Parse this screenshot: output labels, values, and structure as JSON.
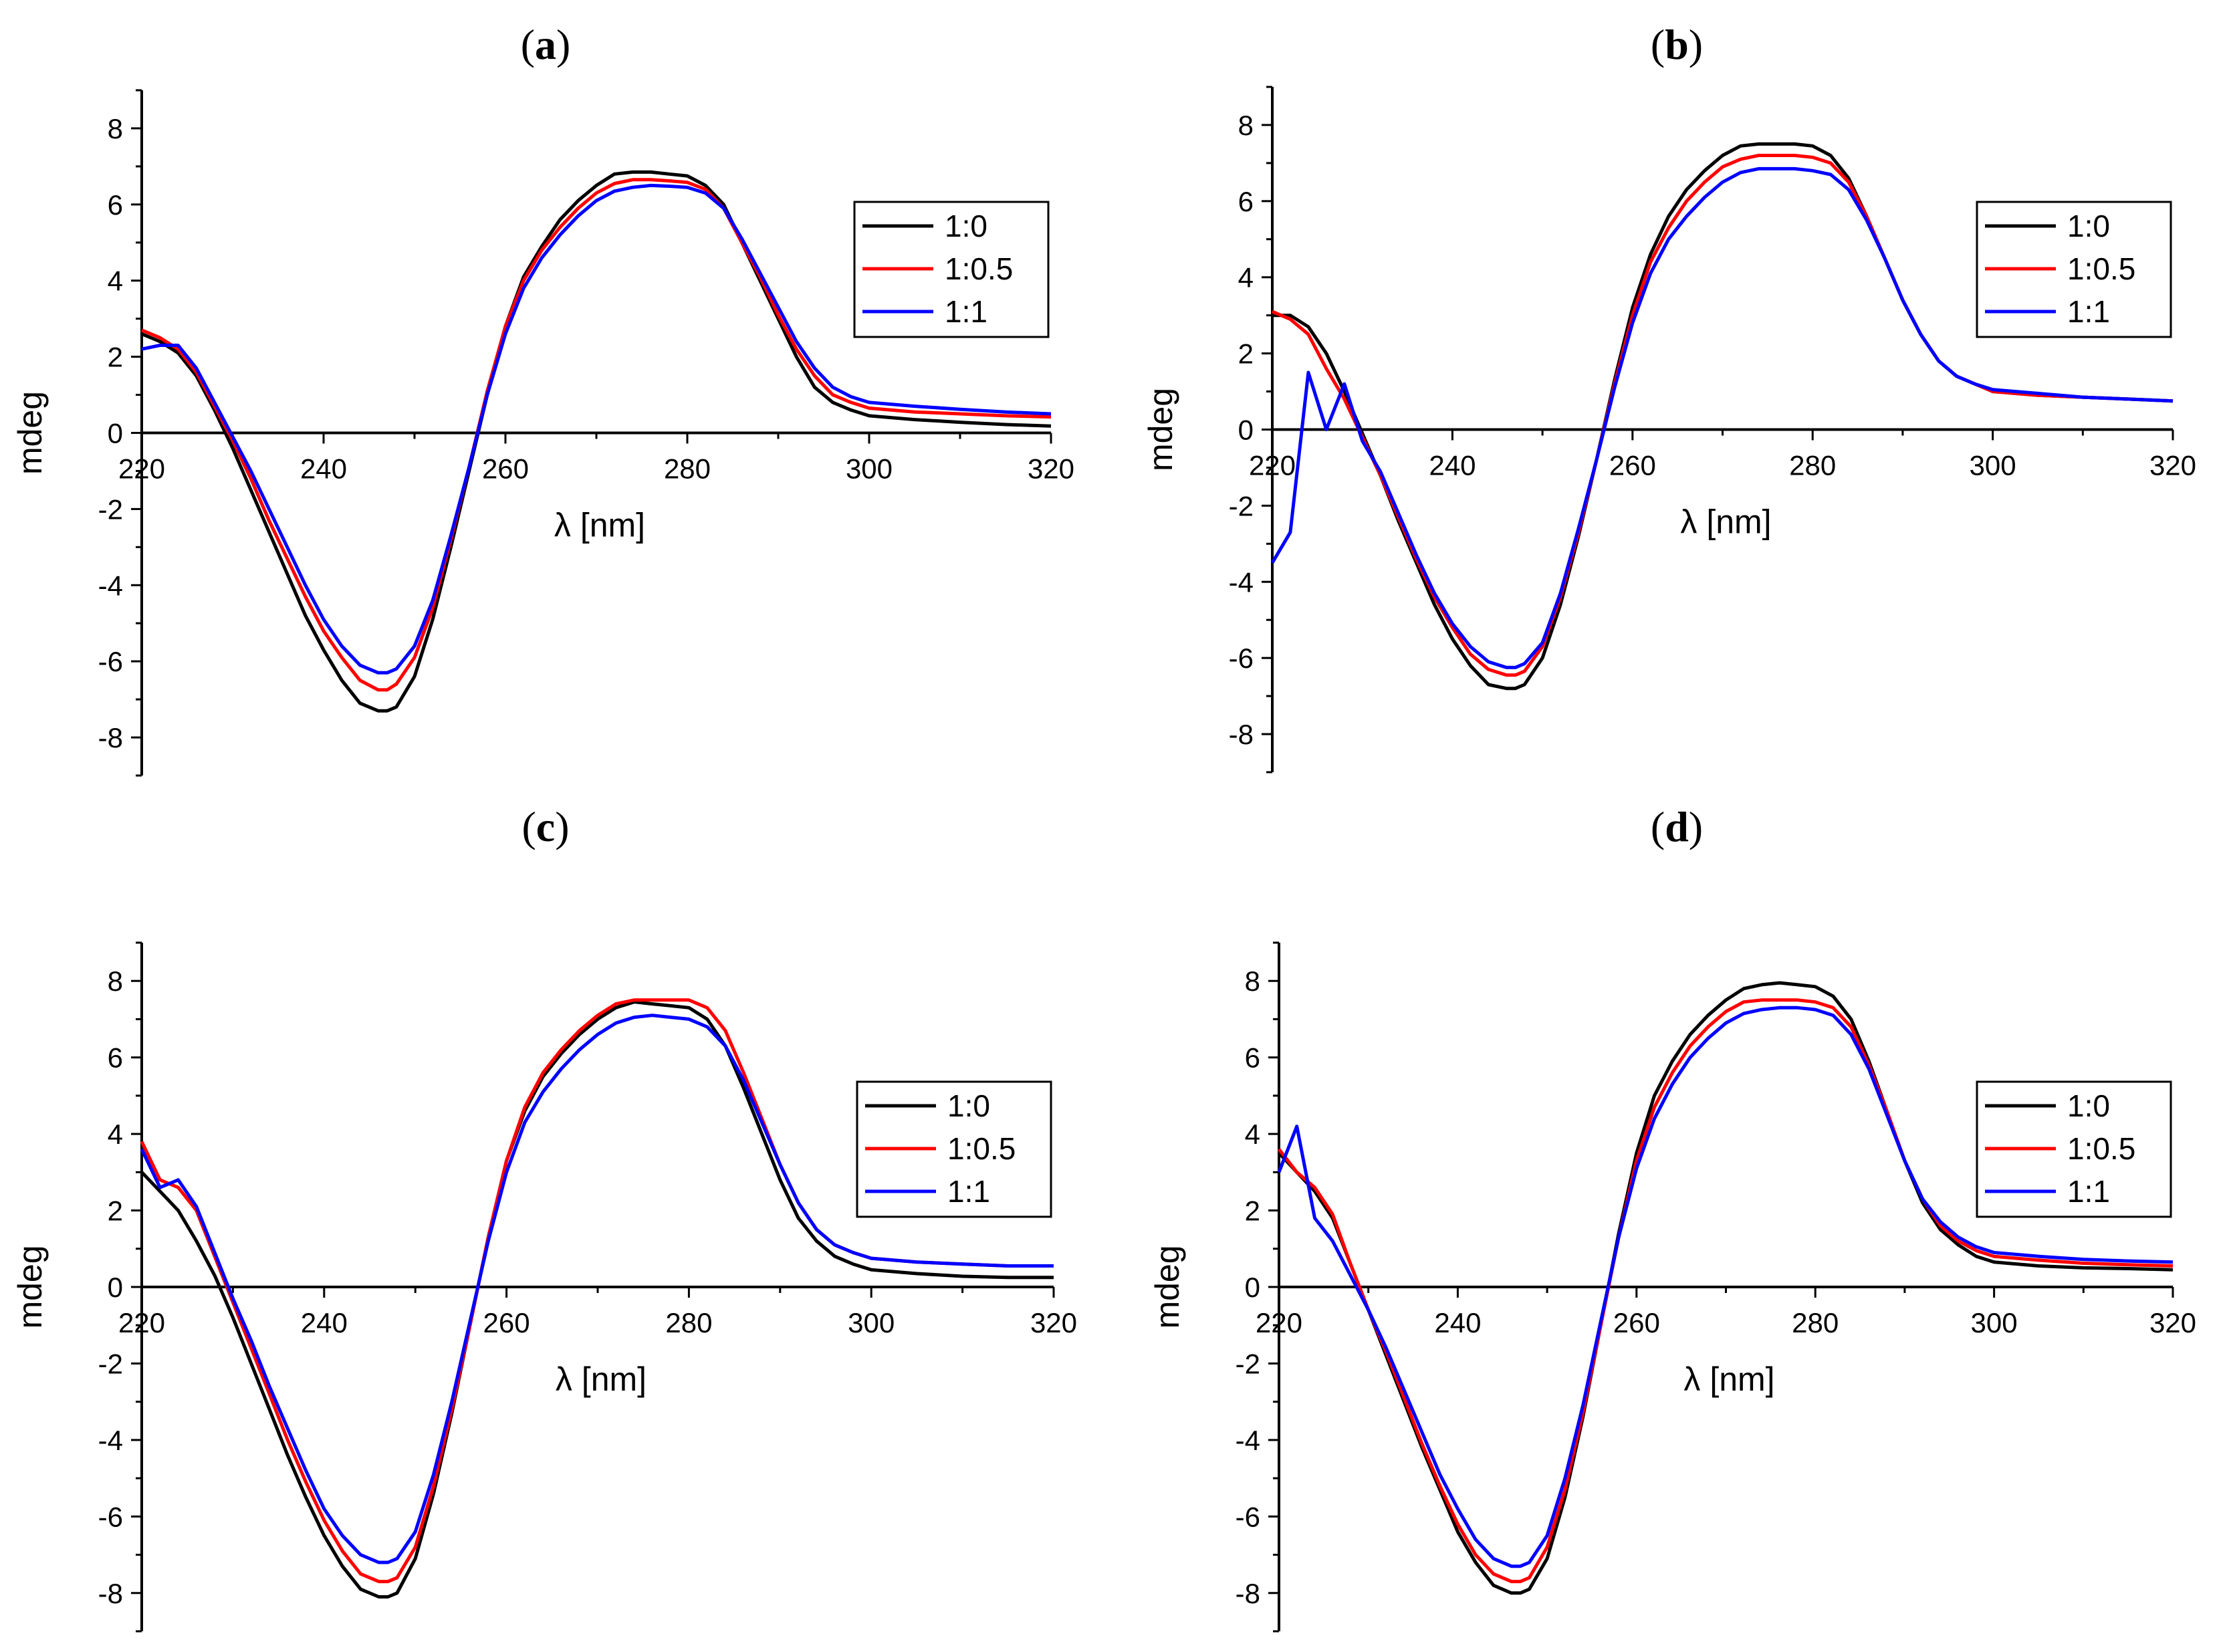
{
  "figure": {
    "panel_count": 4
  },
  "colors": {
    "series_1_0": "#000000",
    "series_1_0_5": "#ff0000",
    "series_1_1": "#0000ff"
  },
  "chart_data": [
    {
      "panel": "a",
      "type": "line",
      "xlabel": "λ [nm]",
      "ylabel": "mdeg",
      "xlim": [
        220,
        320
      ],
      "ylim": [
        -9,
        9
      ],
      "xticks": [
        220,
        240,
        260,
        280,
        300,
        320
      ],
      "yticks": [
        -8,
        -6,
        -4,
        -2,
        0,
        2,
        4,
        6,
        8
      ],
      "legend": "top-right",
      "x": [
        220,
        222,
        224,
        226,
        228,
        230,
        232,
        234,
        236,
        238,
        240,
        242,
        244,
        246,
        247,
        248,
        250,
        252,
        254,
        256,
        258,
        260,
        262,
        264,
        266,
        268,
        270,
        272,
        274,
        276,
        278,
        280,
        282,
        284,
        286,
        288,
        290,
        292,
        294,
        296,
        298,
        300,
        305,
        310,
        315,
        320
      ],
      "series": [
        {
          "name": "1:0",
          "color": "#000000",
          "values": [
            2.6,
            2.4,
            2.1,
            1.5,
            0.6,
            -0.4,
            -1.5,
            -2.6,
            -3.7,
            -4.8,
            -5.7,
            -6.5,
            -7.1,
            -7.3,
            -7.3,
            -7.2,
            -6.4,
            -4.9,
            -3.0,
            -1.0,
            1.0,
            2.8,
            4.1,
            4.9,
            5.6,
            6.1,
            6.5,
            6.8,
            6.85,
            6.85,
            6.8,
            6.75,
            6.5,
            6.0,
            5.0,
            4.0,
            3.0,
            2.0,
            1.2,
            0.8,
            0.6,
            0.45,
            0.35,
            0.28,
            0.22,
            0.18
          ]
        },
        {
          "name": "1:0.5",
          "color": "#ff0000",
          "values": [
            2.7,
            2.5,
            2.2,
            1.6,
            0.7,
            -0.2,
            -1.2,
            -2.3,
            -3.3,
            -4.3,
            -5.2,
            -5.9,
            -6.5,
            -6.75,
            -6.75,
            -6.6,
            -5.9,
            -4.6,
            -2.8,
            -0.9,
            1.1,
            2.8,
            4.0,
            4.8,
            5.4,
            5.9,
            6.3,
            6.55,
            6.65,
            6.65,
            6.62,
            6.58,
            6.4,
            5.9,
            5.0,
            4.1,
            3.1,
            2.2,
            1.5,
            1.0,
            0.8,
            0.65,
            0.55,
            0.5,
            0.45,
            0.42
          ]
        },
        {
          "name": "1:1",
          "color": "#0000ff",
          "values": [
            2.2,
            2.3,
            2.3,
            1.7,
            0.8,
            -0.1,
            -1.0,
            -2.0,
            -3.0,
            -4.0,
            -4.9,
            -5.6,
            -6.1,
            -6.3,
            -6.3,
            -6.2,
            -5.6,
            -4.4,
            -2.7,
            -0.9,
            1.0,
            2.6,
            3.8,
            4.6,
            5.2,
            5.7,
            6.1,
            6.35,
            6.45,
            6.5,
            6.48,
            6.45,
            6.3,
            5.9,
            5.1,
            4.2,
            3.3,
            2.4,
            1.7,
            1.2,
            0.95,
            0.8,
            0.7,
            0.62,
            0.55,
            0.5
          ]
        }
      ]
    },
    {
      "panel": "b",
      "type": "line",
      "xlabel": "λ [nm]",
      "ylabel": "mdeg",
      "xlim": [
        220,
        320
      ],
      "ylim": [
        -9,
        9
      ],
      "xticks": [
        220,
        240,
        260,
        280,
        300,
        320
      ],
      "yticks": [
        -8,
        -6,
        -4,
        -2,
        0,
        2,
        4,
        6,
        8
      ],
      "legend": "top-right",
      "x": [
        220,
        222,
        224,
        226,
        228,
        230,
        232,
        234,
        236,
        238,
        240,
        242,
        244,
        246,
        247,
        248,
        250,
        252,
        254,
        256,
        258,
        260,
        262,
        264,
        266,
        268,
        270,
        272,
        274,
        276,
        278,
        280,
        282,
        284,
        286,
        288,
        290,
        292,
        294,
        296,
        298,
        300,
        305,
        310,
        315,
        320
      ],
      "series": [
        {
          "name": "1:0",
          "color": "#000000",
          "values": [
            3.0,
            3.0,
            2.7,
            2.0,
            1.0,
            -0.1,
            -1.2,
            -2.4,
            -3.5,
            -4.6,
            -5.5,
            -6.2,
            -6.7,
            -6.8,
            -6.8,
            -6.7,
            -6.0,
            -4.6,
            -2.8,
            -0.8,
            1.3,
            3.2,
            4.6,
            5.6,
            6.3,
            6.8,
            7.2,
            7.45,
            7.5,
            7.5,
            7.5,
            7.45,
            7.2,
            6.6,
            5.6,
            4.5,
            3.4,
            2.5,
            1.8,
            1.4,
            1.2,
            1.0,
            0.9,
            0.85,
            0.8,
            0.75
          ]
        },
        {
          "name": "1:0.5",
          "color": "#ff0000",
          "values": [
            3.1,
            2.9,
            2.5,
            1.6,
            0.8,
            -0.2,
            -1.2,
            -2.3,
            -3.4,
            -4.4,
            -5.2,
            -5.9,
            -6.3,
            -6.45,
            -6.45,
            -6.35,
            -5.7,
            -4.4,
            -2.7,
            -0.8,
            1.2,
            3.0,
            4.4,
            5.3,
            6.0,
            6.5,
            6.9,
            7.1,
            7.2,
            7.2,
            7.2,
            7.15,
            7.0,
            6.5,
            5.6,
            4.5,
            3.4,
            2.5,
            1.8,
            1.4,
            1.2,
            1.0,
            0.9,
            0.85,
            0.8,
            0.75
          ]
        },
        {
          "name": "1:1",
          "color": "#0000ff",
          "values": [
            -3.5,
            -2.7,
            1.5,
            0.0,
            1.2,
            -0.3,
            -1.1,
            -2.2,
            -3.3,
            -4.3,
            -5.1,
            -5.7,
            -6.1,
            -6.25,
            -6.25,
            -6.15,
            -5.6,
            -4.3,
            -2.6,
            -0.8,
            1.1,
            2.8,
            4.1,
            5.0,
            5.6,
            6.1,
            6.5,
            6.75,
            6.85,
            6.85,
            6.85,
            6.8,
            6.7,
            6.3,
            5.5,
            4.5,
            3.4,
            2.5,
            1.8,
            1.4,
            1.2,
            1.05,
            0.95,
            0.85,
            0.8,
            0.75
          ]
        }
      ]
    },
    {
      "panel": "c",
      "type": "line",
      "xlabel": "λ [nm]",
      "ylabel": "mdeg",
      "xlim": [
        220,
        320
      ],
      "ylim": [
        -9,
        9
      ],
      "xticks": [
        220,
        240,
        260,
        280,
        300,
        320
      ],
      "yticks": [
        -8,
        -6,
        -4,
        -2,
        0,
        2,
        4,
        6,
        8
      ],
      "legend": "top-right",
      "x": [
        220,
        222,
        224,
        226,
        228,
        230,
        232,
        234,
        236,
        238,
        240,
        242,
        244,
        246,
        247,
        248,
        250,
        252,
        254,
        256,
        258,
        260,
        262,
        264,
        266,
        268,
        270,
        272,
        274,
        276,
        278,
        280,
        282,
        284,
        286,
        288,
        290,
        292,
        294,
        296,
        298,
        300,
        305,
        310,
        315,
        320
      ],
      "series": [
        {
          "name": "1:0",
          "color": "#000000",
          "values": [
            3.0,
            2.5,
            2.0,
            1.2,
            0.3,
            -0.8,
            -2.0,
            -3.2,
            -4.4,
            -5.5,
            -6.5,
            -7.3,
            -7.9,
            -8.1,
            -8.1,
            -8.0,
            -7.1,
            -5.4,
            -3.3,
            -1.0,
            1.3,
            3.3,
            4.6,
            5.5,
            6.1,
            6.6,
            7.0,
            7.3,
            7.45,
            7.4,
            7.35,
            7.3,
            7.0,
            6.3,
            5.2,
            4.0,
            2.8,
            1.8,
            1.2,
            0.8,
            0.6,
            0.45,
            0.35,
            0.28,
            0.25,
            0.25
          ]
        },
        {
          "name": "1:0.5",
          "color": "#ff0000",
          "values": [
            3.8,
            2.8,
            2.6,
            2.0,
            0.8,
            -0.4,
            -1.6,
            -2.8,
            -4.0,
            -5.1,
            -6.1,
            -6.9,
            -7.5,
            -7.7,
            -7.7,
            -7.6,
            -6.8,
            -5.2,
            -3.2,
            -1.0,
            1.3,
            3.3,
            4.7,
            5.6,
            6.2,
            6.7,
            7.1,
            7.4,
            7.5,
            7.5,
            7.5,
            7.5,
            7.3,
            6.7,
            5.6,
            4.4,
            3.2,
            2.2,
            1.5,
            1.1,
            0.9,
            0.75,
            0.65,
            0.6,
            0.55,
            0.55
          ]
        },
        {
          "name": "1:1",
          "color": "#0000ff",
          "values": [
            3.6,
            2.6,
            2.8,
            2.1,
            0.9,
            -0.3,
            -1.4,
            -2.6,
            -3.7,
            -4.8,
            -5.8,
            -6.5,
            -7.0,
            -7.2,
            -7.2,
            -7.1,
            -6.4,
            -4.9,
            -3.0,
            -0.9,
            1.2,
            3.0,
            4.3,
            5.1,
            5.7,
            6.2,
            6.6,
            6.9,
            7.05,
            7.1,
            7.05,
            7.0,
            6.8,
            6.3,
            5.4,
            4.3,
            3.2,
            2.2,
            1.5,
            1.1,
            0.9,
            0.75,
            0.65,
            0.6,
            0.55,
            0.55
          ]
        }
      ]
    },
    {
      "panel": "d",
      "type": "line",
      "xlabel": "λ [nm]",
      "ylabel": "mdeg",
      "xlim": [
        220,
        320
      ],
      "ylim": [
        -9,
        9
      ],
      "xticks": [
        220,
        240,
        260,
        280,
        300,
        320
      ],
      "yticks": [
        -8,
        -6,
        -4,
        -2,
        0,
        2,
        4,
        6,
        8
      ],
      "legend": "top-right",
      "x": [
        220,
        222,
        224,
        226,
        228,
        230,
        232,
        234,
        236,
        238,
        240,
        242,
        244,
        246,
        247,
        248,
        250,
        252,
        254,
        256,
        258,
        260,
        262,
        264,
        266,
        268,
        270,
        272,
        274,
        276,
        278,
        280,
        282,
        284,
        286,
        288,
        290,
        292,
        294,
        296,
        298,
        300,
        305,
        310,
        315,
        320
      ],
      "series": [
        {
          "name": "1:0",
          "color": "#000000",
          "values": [
            3.5,
            3.0,
            2.5,
            1.8,
            0.6,
            -0.6,
            -1.8,
            -3.0,
            -4.2,
            -5.3,
            -6.4,
            -7.2,
            -7.8,
            -8.0,
            -8.0,
            -7.9,
            -7.1,
            -5.5,
            -3.4,
            -1.0,
            1.4,
            3.5,
            5.0,
            5.9,
            6.6,
            7.1,
            7.5,
            7.8,
            7.9,
            7.95,
            7.9,
            7.85,
            7.6,
            7.0,
            5.9,
            4.6,
            3.3,
            2.2,
            1.5,
            1.1,
            0.8,
            0.65,
            0.55,
            0.5,
            0.48,
            0.45
          ]
        },
        {
          "name": "1:0.5",
          "color": "#ff0000",
          "values": [
            3.6,
            3.0,
            2.6,
            1.9,
            0.6,
            -0.6,
            -1.7,
            -2.9,
            -4.1,
            -5.2,
            -6.2,
            -7.0,
            -7.5,
            -7.7,
            -7.7,
            -7.6,
            -6.8,
            -5.3,
            -3.3,
            -1.0,
            1.3,
            3.3,
            4.7,
            5.6,
            6.3,
            6.8,
            7.2,
            7.45,
            7.5,
            7.5,
            7.5,
            7.45,
            7.3,
            6.8,
            5.8,
            4.6,
            3.3,
            2.3,
            1.6,
            1.2,
            0.95,
            0.8,
            0.7,
            0.62,
            0.58,
            0.55
          ]
        },
        {
          "name": "1:1",
          "color": "#0000ff",
          "values": [
            3.0,
            4.2,
            1.8,
            1.2,
            0.3,
            -0.6,
            -1.6,
            -2.7,
            -3.8,
            -4.9,
            -5.8,
            -6.6,
            -7.1,
            -7.3,
            -7.3,
            -7.2,
            -6.5,
            -5.0,
            -3.1,
            -0.9,
            1.3,
            3.1,
            4.4,
            5.3,
            6.0,
            6.5,
            6.9,
            7.15,
            7.25,
            7.3,
            7.3,
            7.25,
            7.1,
            6.6,
            5.7,
            4.5,
            3.3,
            2.3,
            1.7,
            1.3,
            1.05,
            0.9,
            0.8,
            0.72,
            0.68,
            0.65
          ]
        }
      ]
    }
  ]
}
